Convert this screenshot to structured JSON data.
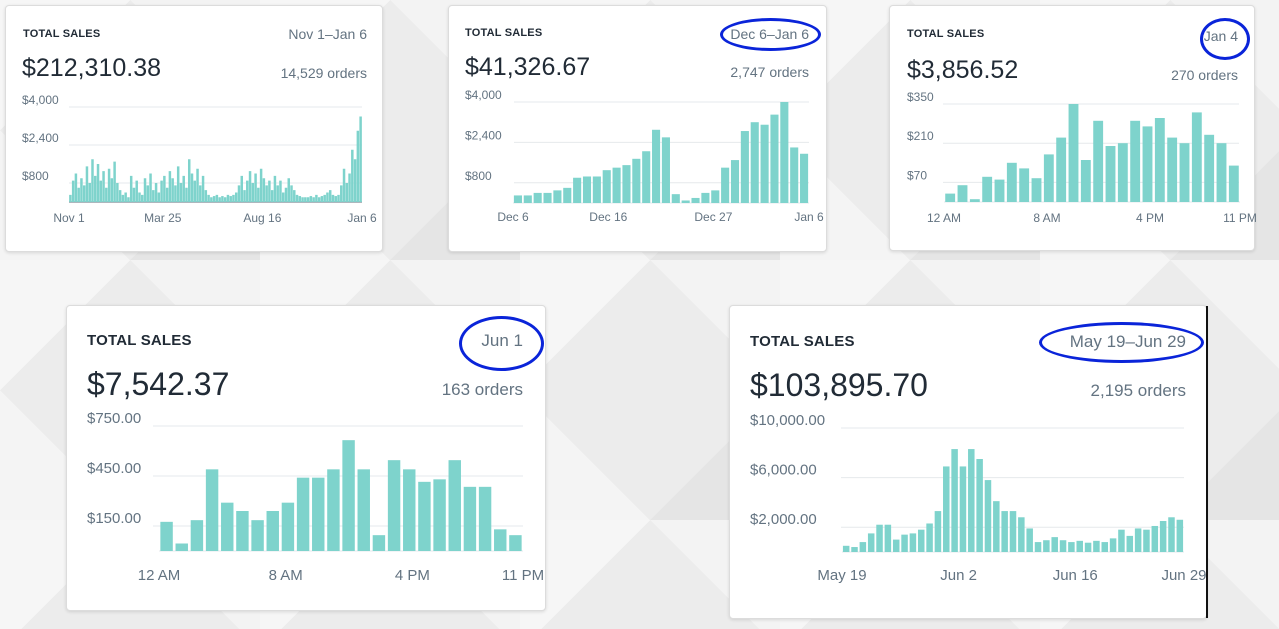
{
  "colors": {
    "bar": "#7ed3cc",
    "grid": "#e6e9ec",
    "highlight": "#0a24d9"
  },
  "cards": [
    {
      "title": "TOTAL SALES",
      "range": "Nov 1–Jan 6",
      "total": "$212,310.38",
      "orders": "14,529 orders",
      "highlighted": false,
      "chart_data": {
        "type": "bar",
        "title": "TOTAL SALES",
        "y_ticks": [
          "$4,000",
          "$2,400",
          "$800"
        ],
        "x_ticks": [
          "Nov 1",
          "Mar 25",
          "Aug 16",
          "Jan 6"
        ],
        "ylim": [
          0,
          4400
        ],
        "y_grid_values": [
          4000,
          2400,
          800
        ],
        "x_tick_positions": [
          0,
          0.32,
          0.66,
          1
        ],
        "grid": true,
        "values": [
          300,
          900,
          1200,
          600,
          1000,
          700,
          1500,
          800,
          1800,
          1100,
          1600,
          900,
          1300,
          600,
          1400,
          1000,
          1700,
          800,
          500,
          300,
          400,
          200,
          1100,
          600,
          900,
          400,
          300,
          1000,
          700,
          1200,
          500,
          800,
          400,
          900,
          1100,
          600,
          1300,
          1000,
          700,
          1500,
          800,
          1100,
          600,
          1800,
          1200,
          900,
          1400,
          700,
          1100,
          500,
          300,
          200,
          250,
          300,
          200,
          250,
          200,
          300,
          250,
          300,
          400,
          700,
          1100,
          500,
          900,
          1300,
          800,
          1200,
          600,
          1400,
          1000,
          700,
          900,
          500,
          1100,
          700,
          900,
          400,
          600,
          1000,
          700,
          500,
          300,
          250,
          200,
          200,
          200,
          250,
          200,
          300,
          200,
          250,
          300,
          400,
          500,
          300,
          250,
          300,
          700,
          1400,
          800,
          1200,
          2200,
          1800,
          3000,
          3600
        ]
      }
    },
    {
      "title": "TOTAL SALES",
      "range": "Dec 6–Jan 6",
      "total": "$41,326.67",
      "orders": "2,747 orders",
      "highlighted": true,
      "chart_data": {
        "type": "bar",
        "title": "TOTAL SALES",
        "y_ticks": [
          "$4,000",
          "$2,400",
          "$800"
        ],
        "x_ticks": [
          "Dec 6",
          "Dec 16",
          "Dec 27",
          "Jan 6"
        ],
        "ylim": [
          0,
          4400
        ],
        "y_grid_values": [
          4000,
          2400,
          800
        ],
        "x_tick_positions": [
          0,
          0.322,
          0.677,
          1
        ],
        "grid": true,
        "values": [
          300,
          300,
          400,
          400,
          500,
          600,
          1000,
          1050,
          1050,
          1300,
          1400,
          1500,
          1750,
          2050,
          2900,
          2600,
          350,
          100,
          200,
          400,
          500,
          1400,
          1700,
          2850,
          3200,
          3100,
          3500,
          4000,
          2200,
          1950
        ]
      }
    },
    {
      "title": "TOTAL SALES",
      "range": "Jan 4",
      "total": "$3,856.52",
      "orders": "270 orders",
      "highlighted": true,
      "chart_data": {
        "type": "bar",
        "title": "TOTAL SALES",
        "y_ticks": [
          "$350",
          "$210",
          "$70"
        ],
        "x_ticks": [
          "12 AM",
          "8 AM",
          "4 PM",
          "11 PM"
        ],
        "ylim": [
          0,
          385
        ],
        "y_grid_values": [
          350,
          210,
          70
        ],
        "x_tick_positions": [
          0,
          0.348,
          0.696,
          1
        ],
        "grid": true,
        "values": [
          30,
          60,
          10,
          90,
          80,
          140,
          120,
          85,
          170,
          230,
          350,
          150,
          290,
          200,
          210,
          290,
          270,
          300,
          230,
          210,
          320,
          240,
          210,
          130
        ]
      }
    },
    {
      "title": "TOTAL SALES",
      "range": "Jun 1",
      "total": "$7,542.37",
      "orders": "163 orders",
      "highlighted": true,
      "chart_data": {
        "type": "bar",
        "title": "TOTAL SALES",
        "y_ticks": [
          "$750.00",
          "$450.00",
          "$150.00"
        ],
        "x_ticks": [
          "12 AM",
          "8 AM",
          "4 PM",
          "11 PM"
        ],
        "ylim": [
          0,
          825
        ],
        "y_grid_values": [
          750,
          450,
          150
        ],
        "x_tick_positions": [
          0,
          0.348,
          0.696,
          1
        ],
        "grid": true,
        "values": [
          175,
          45,
          185,
          490,
          290,
          240,
          185,
          240,
          290,
          440,
          440,
          490,
          665,
          490,
          95,
          545,
          490,
          415,
          430,
          545,
          385,
          385,
          130,
          95
        ]
      }
    },
    {
      "title": "TOTAL SALES",
      "range": "May 19–Jun 29",
      "total": "$103,895.70",
      "orders": "2,195 orders",
      "highlighted": true,
      "chart_data": {
        "type": "bar",
        "title": "TOTAL SALES",
        "y_ticks": [
          "$10,000.00",
          "$6,000.00",
          "$2,000.00"
        ],
        "x_ticks": [
          "May 19",
          "Jun 2",
          "Jun 16",
          "Jun 29"
        ],
        "ylim": [
          0,
          11000
        ],
        "y_grid_values": [
          10000,
          6000,
          2000
        ],
        "x_tick_positions": [
          0,
          0.341,
          0.682,
          1
        ],
        "grid": true,
        "values": [
          500,
          400,
          800,
          1500,
          2200,
          2200,
          1000,
          1400,
          1500,
          1800,
          2300,
          3300,
          6900,
          8300,
          6900,
          8300,
          7500,
          5800,
          4100,
          3300,
          3300,
          2800,
          1900,
          800,
          950,
          1200,
          950,
          800,
          900,
          750,
          900,
          800,
          1100,
          1800,
          1300,
          1900,
          1800,
          2100,
          2500,
          2800,
          2600
        ]
      }
    }
  ]
}
